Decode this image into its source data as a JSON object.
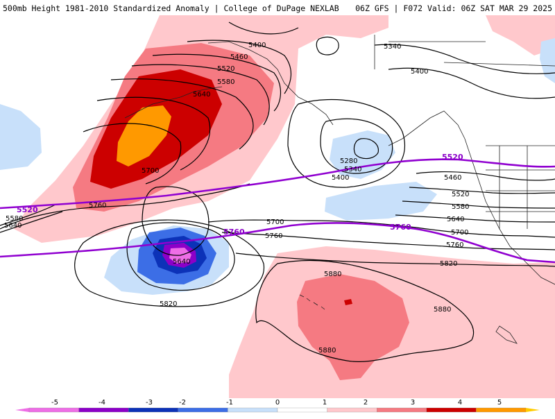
{
  "header": {
    "title": "500mb Height 1981-2010 Standardized Anomaly | College of DuPage NEXLAB",
    "run_info": "06Z GFS | F072 Valid: 06Z SAT MAR 29 2025"
  },
  "colors": {
    "anom_pos_1": "#ffc8cc",
    "anom_pos_2": "#f57a82",
    "anom_pos_3": "#cc0000",
    "anom_pos_4": "#ff9900",
    "anom_neg_1": "#c8e0fa",
    "anom_neg_2": "#3c6ee6",
    "anom_neg_3": "#0c32b8",
    "anom_neg_4": "#8c00c8",
    "anom_neg_5": "#ee6ee6",
    "contour": "#000000",
    "thickness_contour": "#9000d0"
  },
  "contour_labels": {
    "c5400_n": "5400",
    "c5460_n": "5460",
    "c5520_n": "5520",
    "c5580_n": "5580",
    "c5640_n": "5640",
    "c5700_w": "5700",
    "c5760_w": "5760",
    "c5580_w": "5580",
    "c5640_w": "5640",
    "c5340_ne": "5340",
    "c5400_ne": "5400",
    "c5280_c": "5280",
    "c5340_c": "5340",
    "c5400_c": "5400",
    "c5460_e": "5460",
    "c5520_e": "5520",
    "c5580_e": "5580",
    "c5640_e": "5640",
    "c5700_e": "5700",
    "c5760_e": "5760",
    "c5700_m": "5700",
    "c5760_m": "5760",
    "c5820_e": "5820",
    "c5640_low": "5640",
    "c5820_sw": "5820",
    "c5880_n": "5880",
    "c5880_e": "5880",
    "c5880_s": "5880"
  },
  "thickness_labels": {
    "t5520_w": "5520",
    "t5520_e": "5520",
    "t5760_w": "5760",
    "t5760_e": "5760"
  },
  "colorbar": {
    "labels": [
      "-5",
      "-4",
      "-3",
      "-2",
      "-1",
      "0",
      "1",
      "2",
      "3",
      "4",
      "5"
    ],
    "colors": [
      "#ee6ee6",
      "#8c00c8",
      "#0c32b8",
      "#3c6ee6",
      "#c8e0fa",
      "#ffffff",
      "#ffc8cc",
      "#f57a82",
      "#cc0000",
      "#ff9900"
    ],
    "left_end_color": "#ee6ee6",
    "right_end_color": "#ffcc00"
  }
}
